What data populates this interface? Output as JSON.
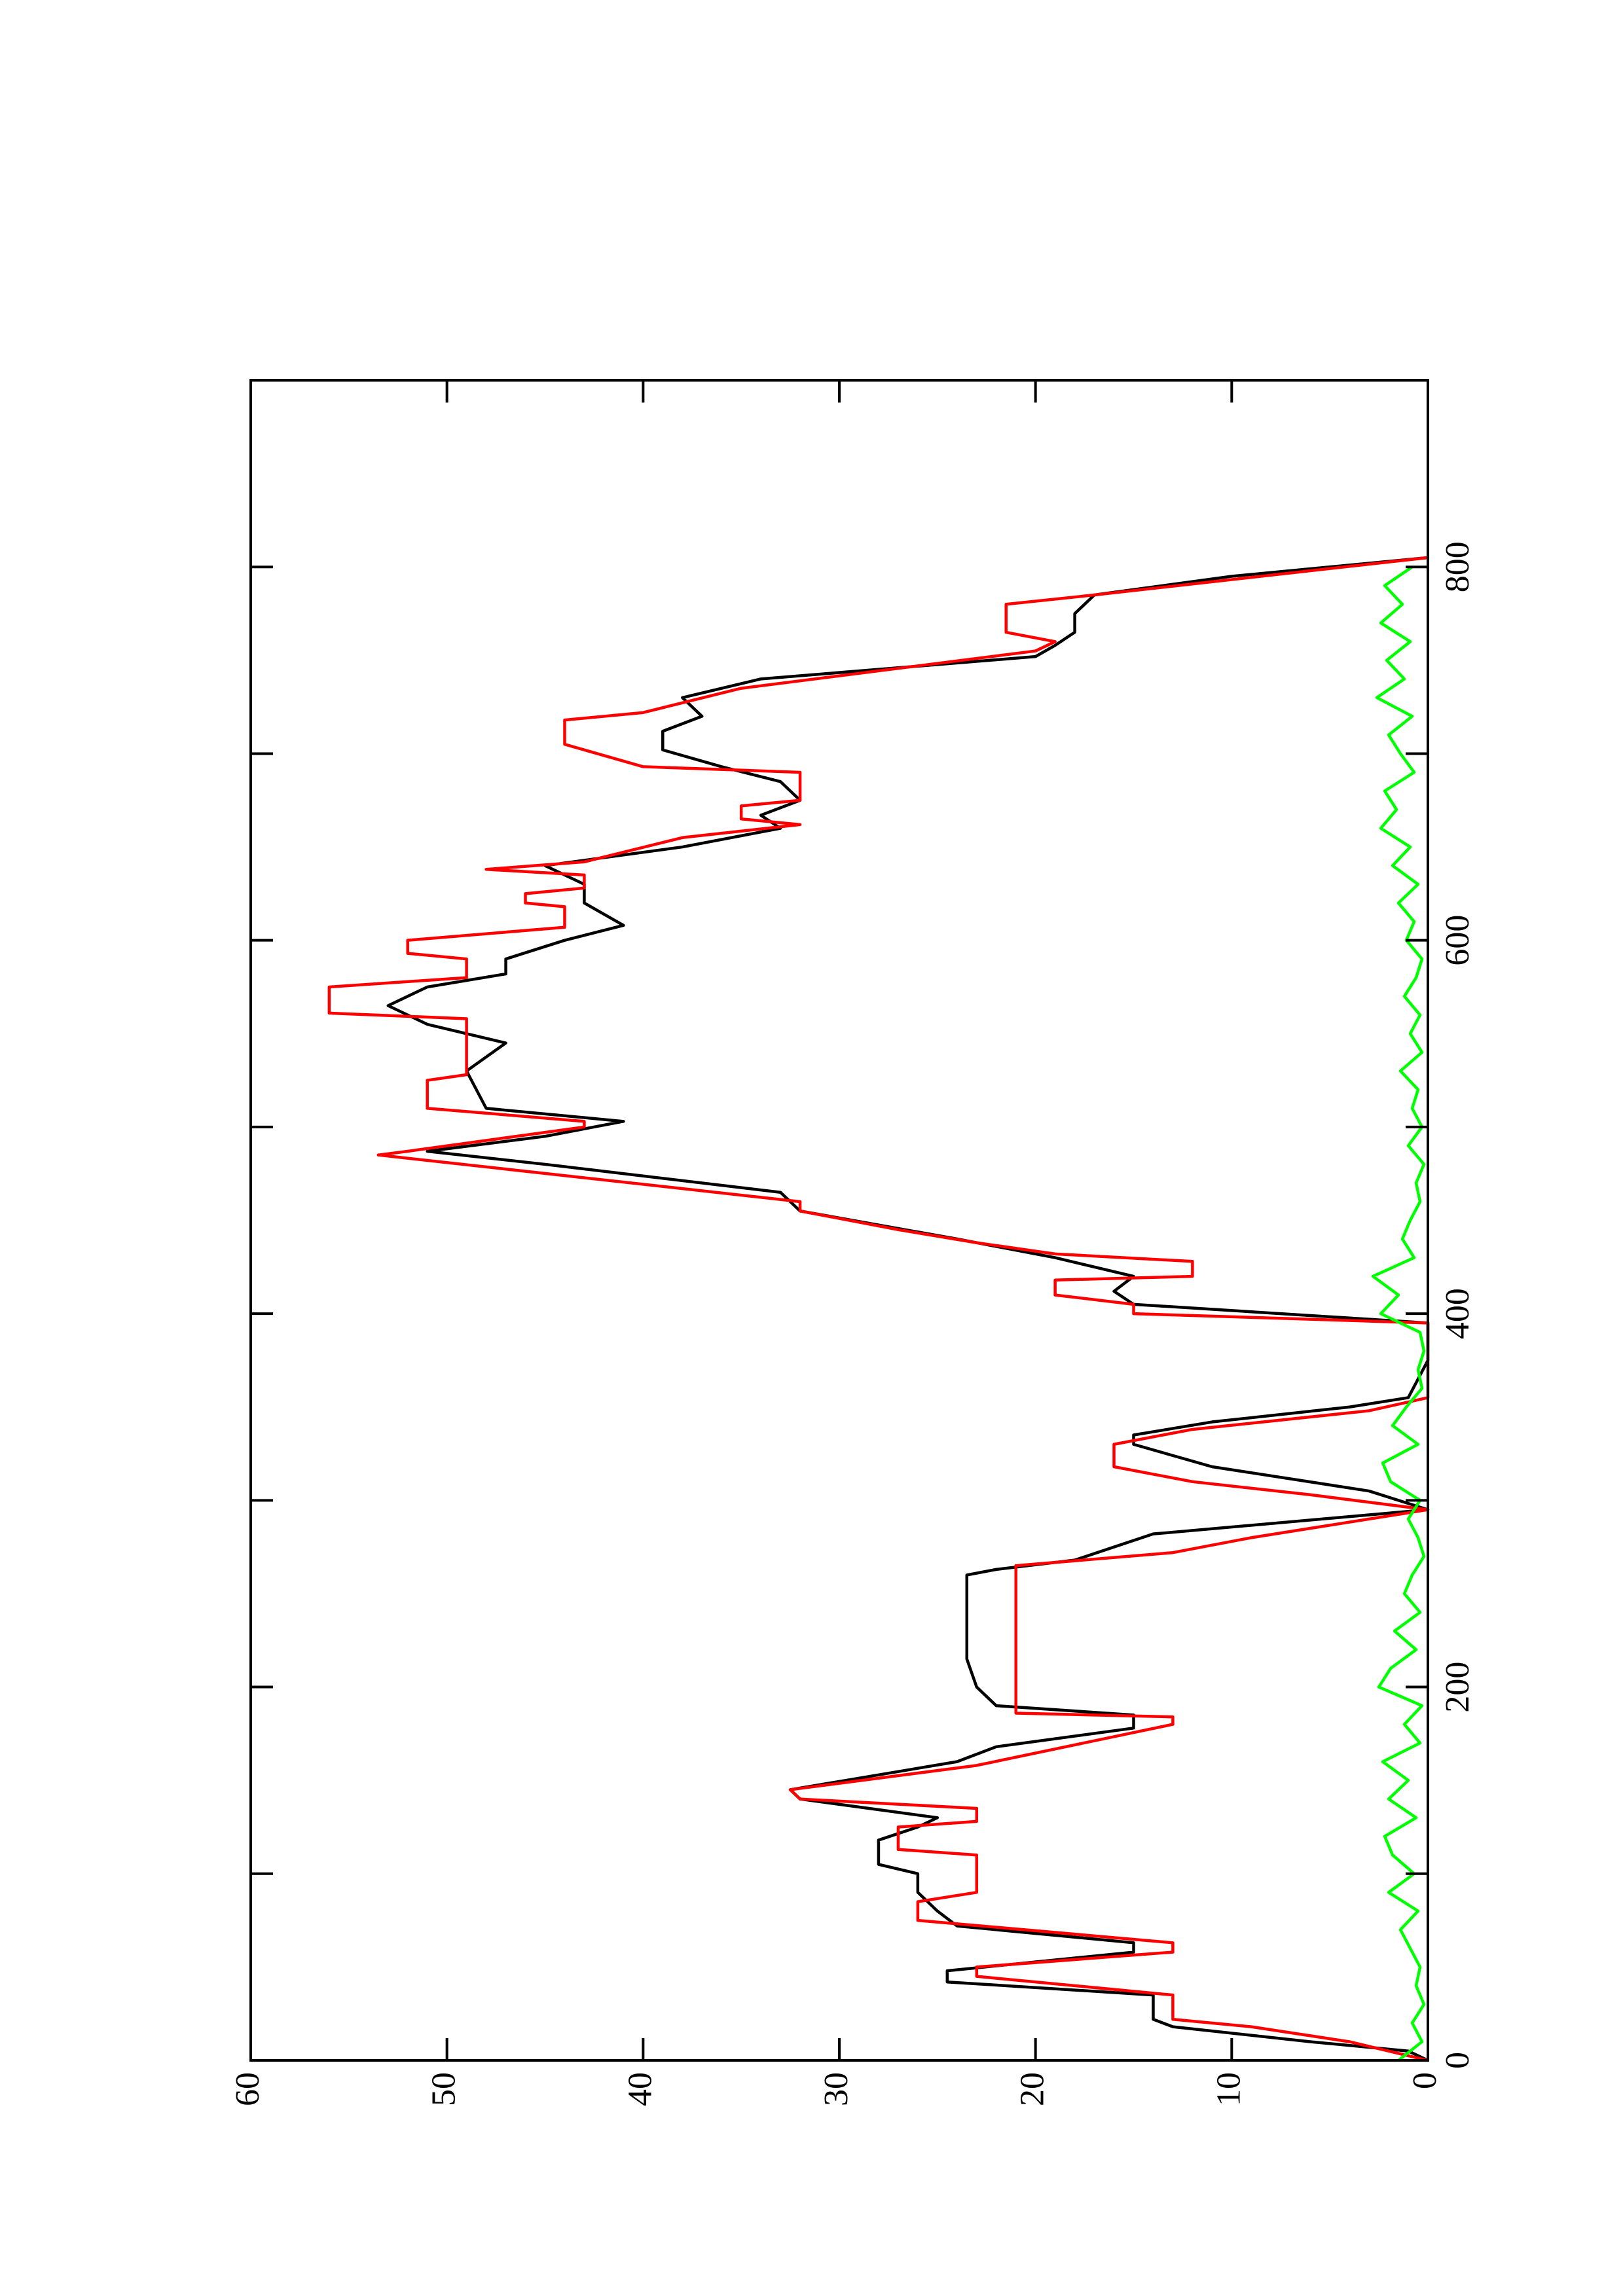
{
  "chart_data": {
    "type": "line",
    "xlim": [
      0,
      900
    ],
    "ylim": [
      0,
      60
    ],
    "xticks": [
      0,
      200,
      400,
      600,
      800
    ],
    "xminor": [
      100,
      300,
      500,
      700
    ],
    "yticks": [
      0,
      10,
      20,
      30,
      40,
      50,
      60
    ],
    "rotated": true,
    "series": [
      {
        "color": "#000000",
        "x": [
          0,
          5,
          10,
          18,
          22,
          35,
          42,
          48,
          58,
          63,
          72,
          80,
          90,
          100,
          105,
          118,
          125,
          130,
          140,
          145,
          160,
          168,
          178,
          185,
          190,
          200,
          215,
          240,
          260,
          263,
          268,
          282,
          295,
          305,
          318,
          330,
          335,
          342,
          350,
          355,
          375,
          395,
          405,
          412,
          420,
          430,
          440,
          455,
          465,
          480,
          487,
          495,
          503,
          510,
          530,
          545,
          555,
          565,
          575,
          582,
          590,
          600,
          608,
          620,
          630,
          640,
          650,
          660,
          667,
          675,
          685,
          693,
          702,
          712,
          720,
          730,
          740,
          752,
          758,
          765,
          775,
          785,
          795,
          805
        ],
        "values": [
          0,
          1,
          6,
          13,
          14,
          14,
          24.5,
          24.5,
          15,
          15,
          24,
          25,
          26,
          26,
          28,
          28,
          26,
          25,
          32,
          32.5,
          24,
          22,
          15,
          15,
          22,
          23,
          23.5,
          23.5,
          23.5,
          22,
          18,
          14,
          0,
          3,
          11,
          15,
          15,
          11,
          4,
          1,
          0,
          0,
          15,
          16,
          15,
          19,
          24,
          32,
          33,
          45,
          51,
          45,
          41,
          48,
          49,
          47,
          51,
          53,
          51,
          47,
          47,
          44,
          41,
          43,
          43,
          45,
          38,
          33,
          34,
          32,
          33,
          36,
          39,
          39,
          37,
          38,
          34,
          20,
          19,
          18,
          18,
          17,
          10,
          0
        ]
      },
      {
        "color": "#ff0000",
        "x": [
          0,
          10,
          18,
          22,
          35,
          45,
          50,
          58,
          63,
          75,
          85,
          90,
          110,
          113,
          125,
          128,
          135,
          140,
          145,
          158,
          180,
          184,
          186,
          265,
          272,
          280,
          295,
          303,
          310,
          318,
          330,
          338,
          348,
          355,
          395,
          400,
          405,
          410,
          418,
          420,
          428,
          432,
          438,
          445,
          455,
          460,
          485,
          487,
          500,
          503,
          510,
          525,
          528,
          558,
          561,
          575,
          580,
          590,
          593,
          600,
          607,
          618,
          620,
          625,
          628,
          635,
          638,
          642,
          655,
          662,
          665,
          672,
          675,
          690,
          693,
          705,
          718,
          722,
          735,
          755,
          760,
          765,
          780,
          785,
          805
        ],
        "values": [
          0,
          4,
          9,
          13,
          13,
          23,
          23,
          13,
          13,
          26,
          26,
          23,
          23,
          27,
          27,
          23,
          23,
          32,
          32.5,
          23,
          13,
          13,
          21,
          21,
          13,
          9,
          0,
          6,
          12,
          16,
          16,
          12,
          3,
          0,
          0,
          15,
          15,
          19,
          19,
          12,
          12,
          19,
          23,
          27,
          32,
          32,
          53.5,
          52,
          43,
          43,
          51,
          51,
          49,
          49,
          56,
          56,
          49,
          49,
          52,
          52,
          44,
          44,
          46,
          46,
          43,
          43,
          48,
          43,
          38,
          32,
          35,
          35,
          32,
          32,
          40,
          44,
          44,
          40,
          35,
          20,
          19,
          21.5,
          21.5,
          17,
          0
        ]
      },
      {
        "color": "#00ff00",
        "x": [
          0,
          10,
          20,
          30,
          40,
          50,
          60,
          70,
          80,
          90,
          100,
          110,
          120,
          130,
          140,
          150,
          160,
          170,
          180,
          190,
          200,
          210,
          220,
          230,
          240,
          250,
          260,
          270,
          280,
          290,
          300,
          310,
          320,
          330,
          340,
          350,
          360,
          370,
          380,
          390,
          400,
          410,
          420,
          430,
          440,
          450,
          460,
          470,
          480,
          490,
          500,
          510,
          520,
          530,
          540,
          550,
          560,
          570,
          580,
          590,
          600,
          610,
          620,
          630,
          640,
          650,
          660,
          670,
          680,
          690,
          700,
          710,
          720,
          730,
          740,
          750,
          760,
          770,
          780,
          790,
          800
        ],
        "values": [
          1.5,
          0.3,
          0.8,
          0.2,
          0.6,
          0.4,
          0.9,
          1.4,
          0.5,
          2.0,
          0.7,
          1.8,
          2.2,
          0.6,
          2.0,
          1.0,
          2.3,
          0.4,
          1.2,
          0.3,
          2.5,
          1.9,
          0.6,
          1.7,
          0.4,
          1.2,
          0.8,
          0.2,
          0.5,
          1.0,
          0.4,
          1.9,
          2.3,
          0.5,
          1.8,
          1.1,
          0.3,
          0.5,
          0.2,
          0.4,
          2.4,
          1.5,
          2.8,
          0.7,
          1.3,
          0.9,
          0.4,
          0.6,
          0.2,
          1.0,
          0.3,
          0.8,
          0.5,
          1.4,
          0.3,
          0.9,
          0.4,
          1.2,
          0.6,
          0.3,
          1.1,
          0.7,
          1.5,
          0.5,
          1.8,
          0.9,
          2.4,
          1.6,
          2.2,
          0.7,
          1.4,
          2.0,
          0.8,
          2.6,
          1.2,
          2.1,
          0.9,
          2.4,
          1.3,
          2.2,
          0.8
        ]
      }
    ]
  }
}
